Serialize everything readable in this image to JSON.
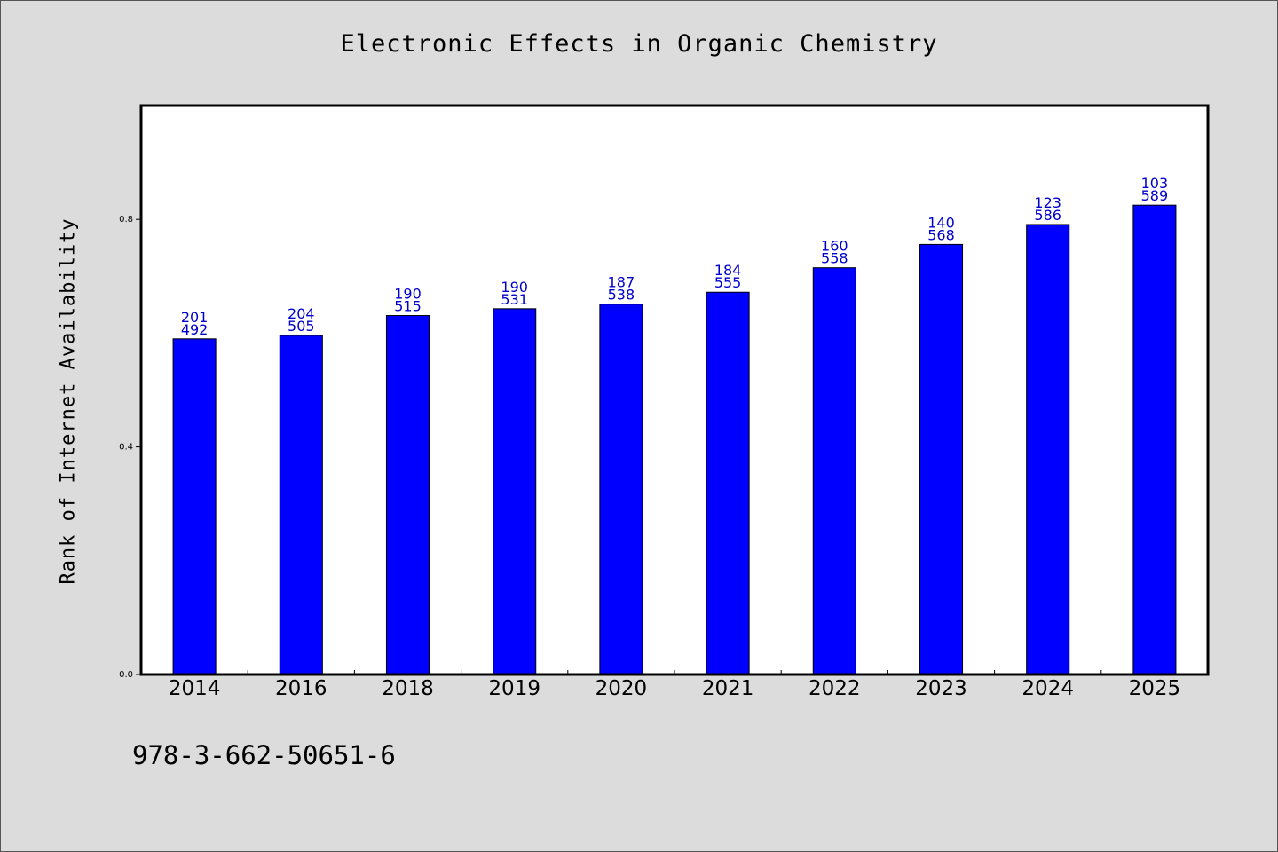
{
  "chart_data": {
    "type": "bar",
    "title": "Electronic Effects in Organic Chemistry",
    "xlabel": "",
    "ylabel": "Rank of Internet Availability",
    "categories": [
      "2014",
      "2016",
      "2018",
      "2019",
      "2020",
      "2021",
      "2022",
      "2023",
      "2024",
      "2025"
    ],
    "values": [
      0.59,
      0.596,
      0.631,
      0.643,
      0.651,
      0.672,
      0.715,
      0.756,
      0.791,
      0.825
    ],
    "bar_labels_top": [
      "201",
      "204",
      "190",
      "190",
      "187",
      "184",
      "160",
      "140",
      "123",
      "103"
    ],
    "bar_labels_bottom": [
      "492",
      "505",
      "515",
      "531",
      "538",
      "555",
      "558",
      "568",
      "586",
      "589"
    ],
    "yticks": [
      0.0,
      0.4,
      0.8
    ],
    "ytick_labels": [
      "0.0",
      "0.4",
      "0.8"
    ],
    "ylim": [
      0,
      1.0
    ],
    "grid": false,
    "bar_color": "#0000ff",
    "label_color": "#0000cc"
  },
  "footer": {
    "isbn": "978-3-662-50651-6"
  }
}
